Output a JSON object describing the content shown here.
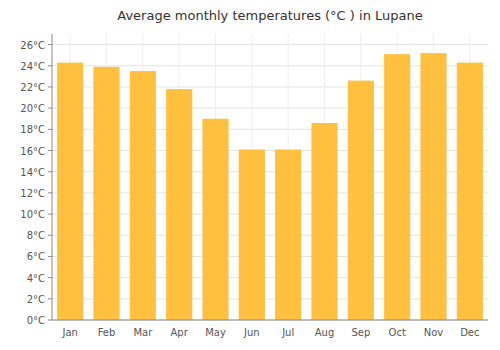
{
  "chart_data": {
    "type": "bar",
    "title": "Average monthly temperatures (°C ) in Lupane",
    "categories": [
      "Jan",
      "Feb",
      "Mar",
      "Apr",
      "May",
      "Jun",
      "Jul",
      "Aug",
      "Sep",
      "Oct",
      "Nov",
      "Dec"
    ],
    "values": [
      24.3,
      23.9,
      23.5,
      21.8,
      19.0,
      16.1,
      16.1,
      18.6,
      22.6,
      25.1,
      25.2,
      24.3
    ],
    "color": "#FFC040",
    "ylim": [
      0,
      27
    ],
    "yticks": [
      {
        "value": 0,
        "label": "0°C"
      },
      {
        "value": 2,
        "label": "2°C"
      },
      {
        "value": 4,
        "label": "4°C"
      },
      {
        "value": 6,
        "label": "6°C"
      },
      {
        "value": 8,
        "label": "8°C"
      },
      {
        "value": 10,
        "label": "10°C"
      },
      {
        "value": 12,
        "label": "12°C"
      },
      {
        "value": 14,
        "label": "14°C"
      },
      {
        "value": 16,
        "label": "16°C"
      },
      {
        "value": 18,
        "label": "18°C"
      },
      {
        "value": 20,
        "label": "20°C"
      },
      {
        "value": 22,
        "label": "22°C"
      },
      {
        "value": 24,
        "label": "24°C"
      },
      {
        "value": 26,
        "label": "26°C"
      }
    ],
    "grid": true
  }
}
